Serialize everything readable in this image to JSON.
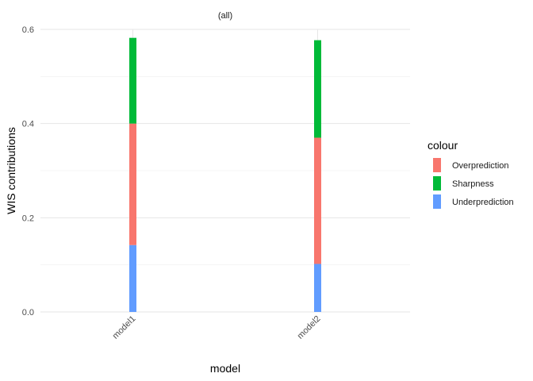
{
  "chart_data": {
    "type": "bar",
    "stacked": true,
    "facet_title": "(all)",
    "xlabel": "model",
    "ylabel": "WIS contributions",
    "categories": [
      "model1",
      "model2"
    ],
    "ylim": [
      0,
      0.6
    ],
    "yticks": [
      0.0,
      0.2,
      0.4,
      0.6
    ],
    "ytick_labels": [
      "0.0",
      "0.2",
      "0.4",
      "0.6"
    ],
    "grid": true,
    "legend_position": "right",
    "legend_title": "colour",
    "series": [
      {
        "name": "Underprediction",
        "color": "#619CFF",
        "values": [
          0.142,
          0.102
        ]
      },
      {
        "name": "Overprediction",
        "color": "#F8766D",
        "values": [
          0.258,
          0.268
        ]
      },
      {
        "name": "Sharpness",
        "color": "#00BA38",
        "values": [
          0.182,
          0.207
        ]
      }
    ],
    "legend_order": [
      "Overprediction",
      "Sharpness",
      "Underprediction"
    ]
  }
}
